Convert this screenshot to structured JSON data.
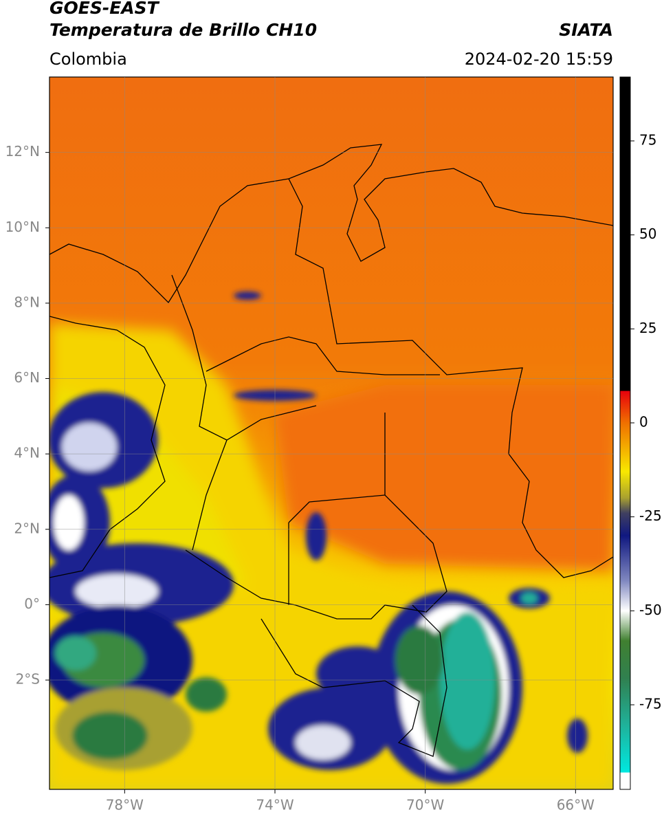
{
  "header": {
    "title_line1": "GOES-EAST",
    "title_line2": "Temperatura de Brillo CH10",
    "source": "SIATA",
    "region": "Colombia",
    "timestamp": "2024-02-20 15:59"
  },
  "map": {
    "lon_range": [
      -80,
      -65
    ],
    "lat_range": [
      -4.9,
      14
    ],
    "lon_ticks": [
      {
        "value": -78,
        "label": "78°W"
      },
      {
        "value": -74,
        "label": "74°W"
      },
      {
        "value": -70,
        "label": "70°W"
      },
      {
        "value": -66,
        "label": "66°W"
      }
    ],
    "lat_ticks": [
      {
        "value": 12,
        "label": "12°N"
      },
      {
        "value": 10,
        "label": "10°N"
      },
      {
        "value": 8,
        "label": "8°N"
      },
      {
        "value": 6,
        "label": "6°N"
      },
      {
        "value": 4,
        "label": "4°N"
      },
      {
        "value": 2,
        "label": "2°N"
      },
      {
        "value": 0,
        "label": "0°"
      },
      {
        "value": -2,
        "label": "2°S"
      }
    ],
    "grid": true
  },
  "colorbar": {
    "range": [
      -97.5,
      92
    ],
    "ticks": [
      75,
      50,
      25,
      0,
      -25,
      -50,
      -75
    ],
    "color_stops": [
      {
        "value": 92,
        "color": "#000000"
      },
      {
        "value": 8.5,
        "color": "#000000"
      },
      {
        "value": 8.5,
        "color": "#e8000c"
      },
      {
        "value": 0,
        "color": "#f07000"
      },
      {
        "value": -13,
        "color": "#f8e800"
      },
      {
        "value": -20,
        "color": "#a8a030"
      },
      {
        "value": -24,
        "color": "#404060"
      },
      {
        "value": -30,
        "color": "#101880"
      },
      {
        "value": -42,
        "color": "#8088c0"
      },
      {
        "value": -50,
        "color": "#ffffff"
      },
      {
        "value": -58,
        "color": "#408030"
      },
      {
        "value": -68,
        "color": "#308050"
      },
      {
        "value": -80,
        "color": "#20b098"
      },
      {
        "value": -93,
        "color": "#00e8e0"
      },
      {
        "value": -93,
        "color": "#ffffff"
      },
      {
        "value": -97.5,
        "color": "#ffffff"
      }
    ]
  }
}
